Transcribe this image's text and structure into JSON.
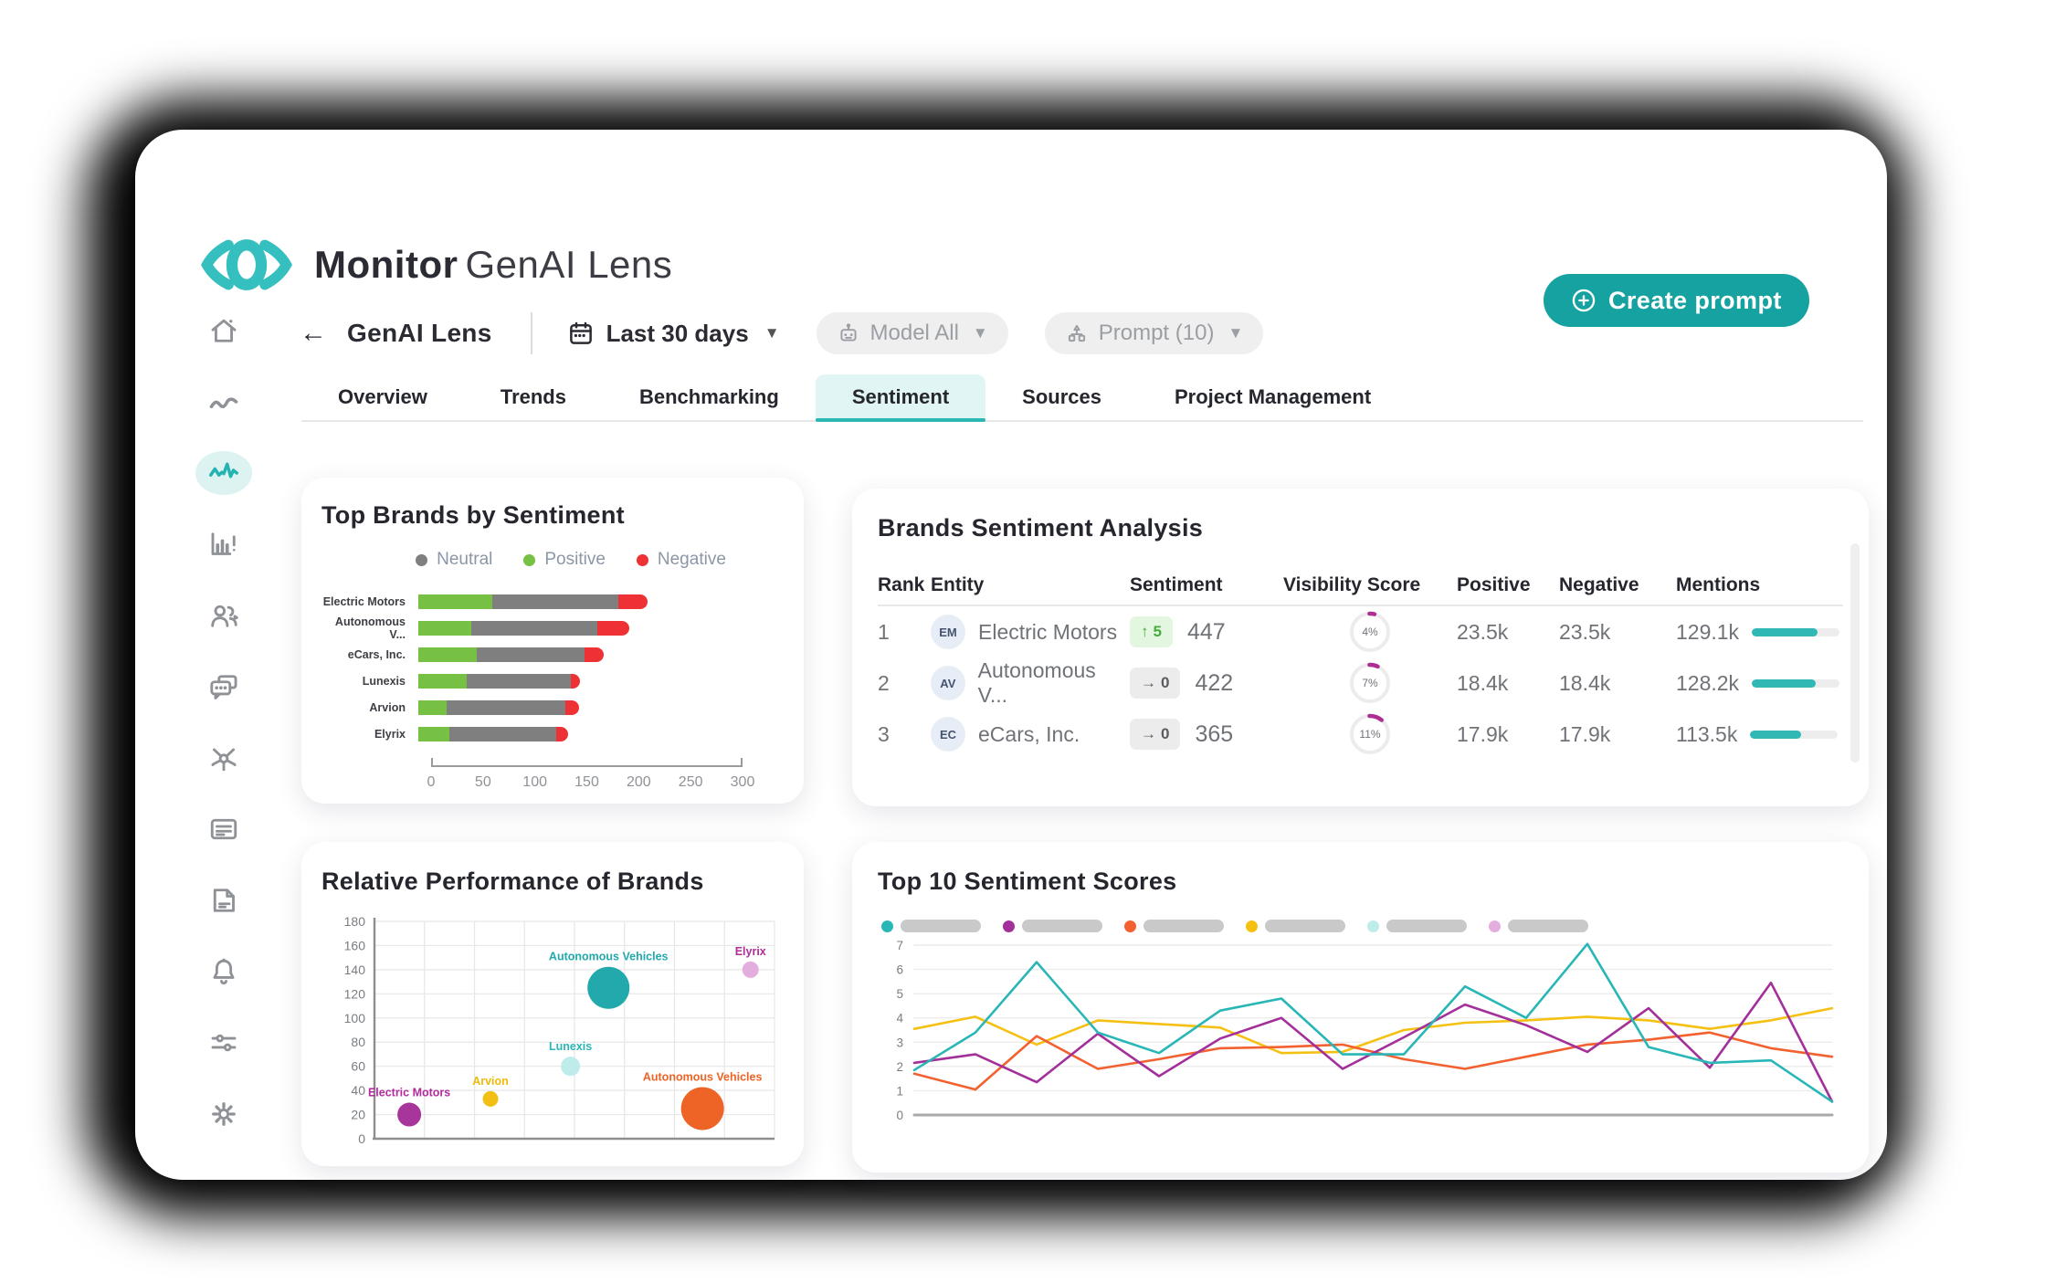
{
  "app": {
    "brand_bold": "Monitor",
    "brand_light": "GenAI Lens"
  },
  "header": {
    "create_prompt_label": "Create prompt",
    "create_icon": "plus-circle-icon"
  },
  "toolbar": {
    "back_icon": "arrow-left-icon",
    "view_title": "GenAI Lens",
    "date_range": {
      "icon": "calendar-icon",
      "label": "Last 30 days",
      "caret": "chevron-down-icon"
    },
    "model_filter": {
      "icon": "robot-icon",
      "label": "Model All",
      "caret": "chevron-down-icon"
    },
    "prompt_filter": {
      "icon": "hierarchy-icon",
      "label": "Prompt (10)",
      "caret": "chevron-down-icon"
    }
  },
  "tabs": [
    {
      "label": "Overview",
      "active": false
    },
    {
      "label": "Trends",
      "active": false
    },
    {
      "label": "Benchmarking",
      "active": false
    },
    {
      "label": "Sentiment",
      "active": true
    },
    {
      "label": "Sources",
      "active": false
    },
    {
      "label": "Project Management",
      "active": false
    }
  ],
  "sidebar": [
    {
      "icon": "home-icon",
      "active": false
    },
    {
      "icon": "trend-line-icon",
      "active": false
    },
    {
      "icon": "pulse-icon",
      "active": true
    },
    {
      "icon": "bar-chart-alert-icon",
      "active": false
    },
    {
      "icon": "users-icon",
      "active": false
    },
    {
      "icon": "chat-bubbles-icon",
      "active": false
    },
    {
      "icon": "network-hub-icon",
      "active": false
    },
    {
      "icon": "list-card-icon",
      "active": false
    },
    {
      "icon": "document-icon",
      "active": false
    },
    {
      "icon": "bell-icon",
      "active": false
    },
    {
      "icon": "sliders-icon",
      "active": false
    },
    {
      "icon": "gear-icon",
      "active": false
    }
  ],
  "colors": {
    "accent": "#23b3b1",
    "positive": "#76c043",
    "neutral": "#7f7f7f",
    "negative": "#ee3135",
    "gauge": "#ad2f92"
  },
  "chart_data": [
    {
      "id": "top_brands_by_sentiment",
      "type": "bar",
      "orientation": "horizontal",
      "stacked": true,
      "title": "Top Brands by Sentiment",
      "legend": [
        {
          "label": "Neutral",
          "color": "#7f7f7f"
        },
        {
          "label": "Positive",
          "color": "#76c043"
        },
        {
          "label": "Negative",
          "color": "#ee3135"
        }
      ],
      "categories": [
        "Electric Motors",
        "Autonomous V...",
        "eCars, Inc.",
        "Lunexis",
        "Arvion",
        "Elyrix"
      ],
      "series": [
        {
          "name": "Positive",
          "color": "#76c043",
          "values": [
            71,
            51,
            56,
            47,
            27,
            30
          ]
        },
        {
          "name": "Neutral",
          "color": "#7f7f7f",
          "values": [
            122,
            121,
            104,
            100,
            115,
            103
          ]
        },
        {
          "name": "Negative",
          "color": "#ee3135",
          "values": [
            28,
            31,
            19,
            9,
            13,
            11
          ]
        }
      ],
      "xlim": [
        0,
        300
      ],
      "xticks": [
        0,
        50,
        100,
        150,
        200,
        250,
        300
      ],
      "grid": false
    },
    {
      "id": "brands_sentiment_analysis",
      "type": "table",
      "title": "Brands Sentiment Analysis",
      "columns": [
        "Rank",
        "Entity",
        "Sentiment",
        "Visibility Score",
        "Positive",
        "Negative",
        "Mentions"
      ],
      "rows": [
        {
          "rank": "1",
          "initials": "EM",
          "entity": "Electric Motors",
          "trend_icon": "arrow-up-icon",
          "trend_dir": "up",
          "trend_value": "5",
          "sentiment": "447",
          "visibility": "4%",
          "visibility_pct": 4,
          "positive": "23.5k",
          "negative": "23.5k",
          "mentions": "129.1k",
          "mentions_pct": 75
        },
        {
          "rank": "2",
          "initials": "AV",
          "entity": "Autonomous V...",
          "trend_icon": "arrow-right-icon",
          "trend_dir": "flat",
          "trend_value": "0",
          "sentiment": "422",
          "visibility": "7%",
          "visibility_pct": 7,
          "positive": "18.4k",
          "negative": "18.4k",
          "mentions": "128.2k",
          "mentions_pct": 73
        },
        {
          "rank": "3",
          "initials": "EC",
          "entity": "eCars, Inc.",
          "trend_icon": "arrow-right-icon",
          "trend_dir": "flat",
          "trend_value": "0",
          "sentiment": "365",
          "visibility": "11%",
          "visibility_pct": 11,
          "positive": "17.9k",
          "negative": "17.9k",
          "mentions": "113.5k",
          "mentions_pct": 58
        }
      ]
    },
    {
      "id": "relative_performance_of_brands",
      "type": "scatter",
      "title": "Relative Performance of Brands",
      "ylim": [
        0,
        180
      ],
      "yticks": [
        0,
        20,
        40,
        60,
        80,
        100,
        120,
        140,
        160,
        180
      ],
      "grid": true,
      "points": [
        {
          "label": "Electric Motors",
          "x_pct": 8.7,
          "y": 20,
          "r": 13,
          "color": "#a8359c",
          "label_color": "#b12d9a"
        },
        {
          "label": "Arvion",
          "x_pct": 29,
          "y": 33,
          "r": 8.5,
          "color": "#f2c014",
          "label_color": "#f0b90c"
        },
        {
          "label": "Lunexis",
          "x_pct": 49,
          "y": 60,
          "r": 10.5,
          "color": "#bdecea",
          "label_color": "#2bb5b5"
        },
        {
          "label": "Autonomous Vehicles",
          "x_pct": 58.5,
          "y": 125,
          "r": 23,
          "color": "#22a9ab",
          "label_color": "#22a9ab"
        },
        {
          "label": "Autonomous Vehicles",
          "x_pct": 82,
          "y": 25,
          "r": 23.5,
          "color": "#ee6326",
          "label_color": "#ee6326"
        },
        {
          "label": "Elyrix",
          "x_pct": 94,
          "y": 140,
          "r": 9,
          "color": "#e3aede",
          "label_color": "#b12d9a"
        }
      ]
    },
    {
      "id": "top_10_sentiment_scores",
      "type": "line",
      "title": "Top 10 Sentiment Scores",
      "ylim": [
        0,
        7
      ],
      "yticks": [
        0,
        1,
        2,
        3,
        4,
        5,
        6,
        7
      ],
      "grid": true,
      "legend_redacted": true,
      "legend": [
        {
          "color": "#29b6b6"
        },
        {
          "color": "#a3309a"
        },
        {
          "color": "#f2612f"
        },
        {
          "color": "#f4c113"
        },
        {
          "color": "#bdecea"
        },
        {
          "color": "#e3aede"
        }
      ],
      "series": [
        {
          "name": "series-yellow",
          "color": "#f4c113",
          "values": [
            3.55,
            4.05,
            2.9,
            3.9,
            3.75,
            3.6,
            2.55,
            2.6,
            3.5,
            3.8,
            3.9,
            4.05,
            3.9,
            3.55,
            3.9,
            4.4
          ]
        },
        {
          "name": "series-orange",
          "color": "#f2612f",
          "values": [
            1.7,
            1.05,
            3.25,
            1.9,
            2.3,
            2.75,
            2.8,
            2.9,
            2.3,
            1.9,
            2.4,
            2.9,
            3.1,
            3.4,
            2.75,
            2.4
          ]
        },
        {
          "name": "series-magenta",
          "color": "#a3309a",
          "values": [
            2.15,
            2.5,
            1.35,
            3.35,
            1.6,
            3.15,
            4.0,
            1.9,
            3.2,
            4.55,
            3.7,
            2.6,
            4.4,
            1.95,
            5.45,
            0.55
          ]
        },
        {
          "name": "series-teal",
          "color": "#29b6b6",
          "values": [
            1.85,
            3.4,
            6.3,
            3.4,
            2.55,
            4.3,
            4.8,
            2.5,
            2.5,
            5.3,
            4.0,
            7.05,
            2.8,
            2.15,
            2.25,
            0.55
          ]
        }
      ]
    }
  ]
}
